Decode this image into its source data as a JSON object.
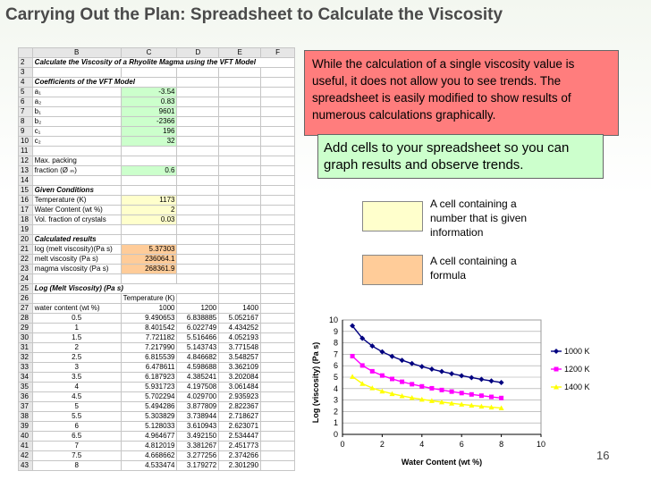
{
  "slide": {
    "title": "Carrying Out the Plan: Spreadsheet to Calculate the Viscosity",
    "page_number": "16"
  },
  "callouts": {
    "red_box": "While the calculation of a single viscosity value is useful, it does not allow you to see trends. The spreadsheet is easily modified to show results of numerous  calculations graphically.",
    "green_box": "Add cells to your spreadsheet so you can graph results and observe trends."
  },
  "legend": {
    "yellow_label": "A cell containing a number that is given information",
    "yellow_color": "#ffffcc",
    "orange_label": "A cell containing a formula",
    "orange_color": "#ffcc99"
  },
  "spreadsheet": {
    "col_headers": [
      "",
      "B",
      "C",
      "D",
      "E",
      "F"
    ],
    "rows": [
      {
        "n": "2",
        "cells": [
          {
            "t": "Calculate the Viscosity of a Rhyolite Magma using the VFT Model",
            "s": "b",
            "span": 5
          }
        ]
      },
      {
        "n": "3",
        "cells": [
          {
            "t": ""
          },
          {
            "t": ""
          },
          {
            "t": ""
          },
          {
            "t": ""
          },
          {
            "t": ""
          }
        ]
      },
      {
        "n": "4",
        "cells": [
          {
            "t": "Coefficients of the VFT Model",
            "s": "b",
            "span": 2
          },
          {
            "t": ""
          },
          {
            "t": ""
          },
          {
            "t": ""
          }
        ]
      },
      {
        "n": "5",
        "cells": [
          {
            "t": "a₁"
          },
          {
            "t": "-3.54",
            "s": "r g"
          },
          {
            "t": ""
          },
          {
            "t": ""
          },
          {
            "t": ""
          }
        ]
      },
      {
        "n": "6",
        "cells": [
          {
            "t": "a₂"
          },
          {
            "t": "0.83",
            "s": "r g"
          },
          {
            "t": ""
          },
          {
            "t": ""
          },
          {
            "t": ""
          }
        ]
      },
      {
        "n": "7",
        "cells": [
          {
            "t": "b₁"
          },
          {
            "t": "9601",
            "s": "r g"
          },
          {
            "t": ""
          },
          {
            "t": ""
          },
          {
            "t": ""
          }
        ]
      },
      {
        "n": "8",
        "cells": [
          {
            "t": "b₂"
          },
          {
            "t": "-2366",
            "s": "r g"
          },
          {
            "t": ""
          },
          {
            "t": ""
          },
          {
            "t": ""
          }
        ]
      },
      {
        "n": "9",
        "cells": [
          {
            "t": "c₁"
          },
          {
            "t": "196",
            "s": "r g"
          },
          {
            "t": ""
          },
          {
            "t": ""
          },
          {
            "t": ""
          }
        ]
      },
      {
        "n": "10",
        "cells": [
          {
            "t": "c₂"
          },
          {
            "t": "32",
            "s": "r g"
          },
          {
            "t": ""
          },
          {
            "t": ""
          },
          {
            "t": ""
          }
        ]
      },
      {
        "n": "11",
        "cells": [
          {
            "t": ""
          },
          {
            "t": ""
          },
          {
            "t": ""
          },
          {
            "t": ""
          },
          {
            "t": ""
          }
        ]
      },
      {
        "n": "12",
        "cells": [
          {
            "t": "Max. packing"
          },
          {
            "t": ""
          },
          {
            "t": ""
          },
          {
            "t": ""
          },
          {
            "t": ""
          }
        ]
      },
      {
        "n": "13",
        "cells": [
          {
            "t": "fraction (Ø ₘ)"
          },
          {
            "t": "0.6",
            "s": "r g"
          },
          {
            "t": ""
          },
          {
            "t": ""
          },
          {
            "t": ""
          }
        ]
      },
      {
        "n": "14",
        "cells": [
          {
            "t": ""
          },
          {
            "t": ""
          },
          {
            "t": ""
          },
          {
            "t": ""
          },
          {
            "t": ""
          }
        ]
      },
      {
        "n": "15",
        "cells": [
          {
            "t": "Given Conditions",
            "s": "b"
          },
          {
            "t": ""
          },
          {
            "t": ""
          },
          {
            "t": ""
          },
          {
            "t": ""
          }
        ]
      },
      {
        "n": "16",
        "cells": [
          {
            "t": "Temperature (K)"
          },
          {
            "t": "1173",
            "s": "r y"
          },
          {
            "t": ""
          },
          {
            "t": ""
          },
          {
            "t": ""
          }
        ]
      },
      {
        "n": "17",
        "cells": [
          {
            "t": "Water Content (wt %)"
          },
          {
            "t": "2",
            "s": "r y"
          },
          {
            "t": ""
          },
          {
            "t": ""
          },
          {
            "t": ""
          }
        ]
      },
      {
        "n": "18",
        "cells": [
          {
            "t": "Vol. fraction of crystals"
          },
          {
            "t": "0.03",
            "s": "r y"
          },
          {
            "t": ""
          },
          {
            "t": ""
          },
          {
            "t": ""
          }
        ]
      },
      {
        "n": "19",
        "cells": [
          {
            "t": ""
          },
          {
            "t": ""
          },
          {
            "t": ""
          },
          {
            "t": ""
          },
          {
            "t": ""
          }
        ]
      },
      {
        "n": "20",
        "cells": [
          {
            "t": "Calculated results",
            "s": "b"
          },
          {
            "t": ""
          },
          {
            "t": ""
          },
          {
            "t": ""
          },
          {
            "t": ""
          }
        ]
      },
      {
        "n": "21",
        "cells": [
          {
            "t": "log (melt viscosity)(Pa s)"
          },
          {
            "t": "5.37303",
            "s": "r o"
          },
          {
            "t": ""
          },
          {
            "t": ""
          },
          {
            "t": ""
          }
        ]
      },
      {
        "n": "22",
        "cells": [
          {
            "t": "melt viscosity (Pa s)"
          },
          {
            "t": "236064.1",
            "s": "r o"
          },
          {
            "t": ""
          },
          {
            "t": ""
          },
          {
            "t": ""
          }
        ]
      },
      {
        "n": "23",
        "cells": [
          {
            "t": "magma viscosity (Pa s)"
          },
          {
            "t": "268361.9",
            "s": "r o"
          },
          {
            "t": ""
          },
          {
            "t": ""
          },
          {
            "t": ""
          }
        ]
      },
      {
        "n": "24",
        "cells": [
          {
            "t": ""
          },
          {
            "t": ""
          },
          {
            "t": ""
          },
          {
            "t": ""
          },
          {
            "t": ""
          }
        ]
      },
      {
        "n": "25",
        "cells": [
          {
            "t": "Log (Melt Viscosity) (Pa s)",
            "s": "b",
            "span": 3
          },
          {
            "t": ""
          },
          {
            "t": ""
          }
        ]
      },
      {
        "n": "26",
        "cells": [
          {
            "t": ""
          },
          {
            "t": "Temperature (K)"
          },
          {
            "t": ""
          },
          {
            "t": ""
          },
          {
            "t": ""
          }
        ]
      },
      {
        "n": "27",
        "cells": [
          {
            "t": "water content (wt %)"
          },
          {
            "t": "1000",
            "s": "r"
          },
          {
            "t": "1200",
            "s": "r"
          },
          {
            "t": "1400",
            "s": "r"
          },
          {
            "t": ""
          }
        ]
      },
      {
        "n": "28",
        "cells": [
          {
            "t": "0.5",
            "s": "c"
          },
          {
            "t": "9.490653",
            "s": "r"
          },
          {
            "t": "6.838885",
            "s": "r"
          },
          {
            "t": "5.052167",
            "s": "r"
          },
          {
            "t": ""
          }
        ]
      },
      {
        "n": "29",
        "cells": [
          {
            "t": "1",
            "s": "c"
          },
          {
            "t": "8.401542",
            "s": "r"
          },
          {
            "t": "6.022749",
            "s": "r"
          },
          {
            "t": "4.434252",
            "s": "r"
          },
          {
            "t": ""
          }
        ]
      },
      {
        "n": "30",
        "cells": [
          {
            "t": "1.5",
            "s": "c"
          },
          {
            "t": "7.721182",
            "s": "r"
          },
          {
            "t": "5.516466",
            "s": "r"
          },
          {
            "t": "4.052193",
            "s": "r"
          },
          {
            "t": ""
          }
        ]
      },
      {
        "n": "31",
        "cells": [
          {
            "t": "2",
            "s": "c"
          },
          {
            "t": "7.217990",
            "s": "r"
          },
          {
            "t": "5.143743",
            "s": "r"
          },
          {
            "t": "3.771548",
            "s": "r"
          },
          {
            "t": ""
          }
        ]
      },
      {
        "n": "32",
        "cells": [
          {
            "t": "2.5",
            "s": "c"
          },
          {
            "t": "6.815539",
            "s": "r"
          },
          {
            "t": "4.846682",
            "s": "r"
          },
          {
            "t": "3.548257",
            "s": "r"
          },
          {
            "t": ""
          }
        ]
      },
      {
        "n": "33",
        "cells": [
          {
            "t": "3",
            "s": "c"
          },
          {
            "t": "6.478611",
            "s": "r"
          },
          {
            "t": "4.598688",
            "s": "r"
          },
          {
            "t": "3.362109",
            "s": "r"
          },
          {
            "t": ""
          }
        ]
      },
      {
        "n": "34",
        "cells": [
          {
            "t": "3.5",
            "s": "c"
          },
          {
            "t": "6.187923",
            "s": "r"
          },
          {
            "t": "4.385241",
            "s": "r"
          },
          {
            "t": "3.202084",
            "s": "r"
          },
          {
            "t": ""
          }
        ]
      },
      {
        "n": "35",
        "cells": [
          {
            "t": "4",
            "s": "c"
          },
          {
            "t": "5.931723",
            "s": "r"
          },
          {
            "t": "4.197508",
            "s": "r"
          },
          {
            "t": "3.061484",
            "s": "r"
          },
          {
            "t": ""
          }
        ]
      },
      {
        "n": "36",
        "cells": [
          {
            "t": "4.5",
            "s": "c"
          },
          {
            "t": "5.702294",
            "s": "r"
          },
          {
            "t": "4.029700",
            "s": "r"
          },
          {
            "t": "2.935923",
            "s": "r"
          },
          {
            "t": ""
          }
        ]
      },
      {
        "n": "37",
        "cells": [
          {
            "t": "5",
            "s": "c"
          },
          {
            "t": "5.494286",
            "s": "r"
          },
          {
            "t": "3.877809",
            "s": "r"
          },
          {
            "t": "2.822367",
            "s": "r"
          },
          {
            "t": ""
          }
        ]
      },
      {
        "n": "38",
        "cells": [
          {
            "t": "5.5",
            "s": "c"
          },
          {
            "t": "5.303829",
            "s": "r"
          },
          {
            "t": "3.738944",
            "s": "r"
          },
          {
            "t": "2.718627",
            "s": "r"
          },
          {
            "t": ""
          }
        ]
      },
      {
        "n": "39",
        "cells": [
          {
            "t": "6",
            "s": "c"
          },
          {
            "t": "5.128033",
            "s": "r"
          },
          {
            "t": "3.610943",
            "s": "r"
          },
          {
            "t": "2.623071",
            "s": "r"
          },
          {
            "t": ""
          }
        ]
      },
      {
        "n": "40",
        "cells": [
          {
            "t": "6.5",
            "s": "c"
          },
          {
            "t": "4.964677",
            "s": "r"
          },
          {
            "t": "3.492150",
            "s": "r"
          },
          {
            "t": "2.534447",
            "s": "r"
          },
          {
            "t": ""
          }
        ]
      },
      {
        "n": "41",
        "cells": [
          {
            "t": "7",
            "s": "c"
          },
          {
            "t": "4.812019",
            "s": "r"
          },
          {
            "t": "3.381267",
            "s": "r"
          },
          {
            "t": "2.451773",
            "s": "r"
          },
          {
            "t": ""
          }
        ]
      },
      {
        "n": "42",
        "cells": [
          {
            "t": "7.5",
            "s": "c"
          },
          {
            "t": "4.668662",
            "s": "r"
          },
          {
            "t": "3.277256",
            "s": "r"
          },
          {
            "t": "2.374266",
            "s": "r"
          },
          {
            "t": ""
          }
        ]
      },
      {
        "n": "43",
        "cells": [
          {
            "t": "8",
            "s": "c"
          },
          {
            "t": "4.533474",
            "s": "r"
          },
          {
            "t": "3.179272",
            "s": "r"
          },
          {
            "t": "2.301290",
            "s": "r"
          },
          {
            "t": ""
          }
        ]
      }
    ]
  },
  "chart_data": {
    "type": "line",
    "title": "",
    "xlabel": "Water Content (wt %)",
    "ylabel": "Log (viscosity) (Pa s)",
    "xlim": [
      0,
      10
    ],
    "ylim": [
      0,
      10
    ],
    "x_ticks": [
      "0",
      "2",
      "4",
      "6",
      "8",
      "10"
    ],
    "y_ticks": [
      "0",
      "1",
      "2",
      "3",
      "4",
      "5",
      "6",
      "7",
      "8",
      "9",
      "10"
    ],
    "grid": true,
    "legend_position": "right",
    "x": [
      0.5,
      1,
      1.5,
      2,
      2.5,
      3,
      3.5,
      4,
      4.5,
      5,
      5.5,
      6,
      6.5,
      7,
      7.5,
      8
    ],
    "series": [
      {
        "name": "1000 K",
        "color": "#000080",
        "marker": "diamond",
        "values": [
          9.490653,
          8.401542,
          7.721182,
          7.21799,
          6.815539,
          6.478611,
          6.187923,
          5.931723,
          5.702294,
          5.494286,
          5.303829,
          5.128033,
          4.964677,
          4.812019,
          4.668662,
          4.533474
        ]
      },
      {
        "name": "1200 K",
        "color": "#ff00ff",
        "marker": "square",
        "values": [
          6.838885,
          6.022749,
          5.516466,
          5.143743,
          4.846682,
          4.598688,
          4.385241,
          4.197508,
          4.0297,
          3.877809,
          3.738944,
          3.610943,
          3.49215,
          3.381267,
          3.277256,
          3.179272
        ]
      },
      {
        "name": "1400 K",
        "color": "#ffff00",
        "marker": "triangle",
        "values": [
          5.052167,
          4.434252,
          4.052193,
          3.771548,
          3.548257,
          3.362109,
          3.202084,
          3.061484,
          2.935923,
          2.822367,
          2.718627,
          2.623071,
          2.534447,
          2.451773,
          2.374266,
          2.30129
        ]
      }
    ]
  }
}
